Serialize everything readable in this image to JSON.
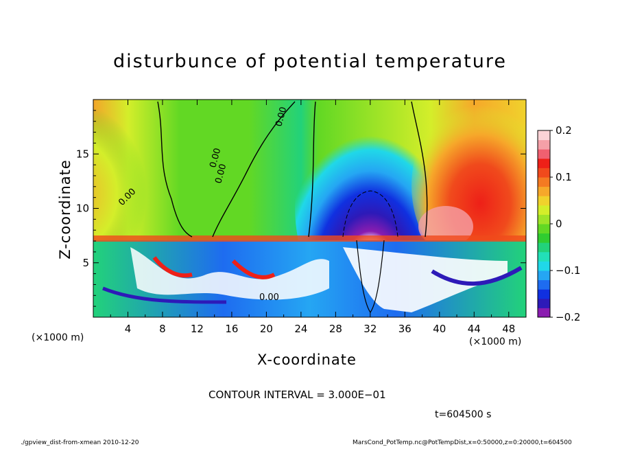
{
  "chart_data": {
    "type": "heatmap",
    "title": "disturbunce of potential temperature",
    "xlabel": "X-coordinate",
    "ylabel": "Z-coordinate",
    "x_unit_label": "(×1000 m)",
    "xlim": [
      0,
      50
    ],
    "ylim": [
      0,
      20
    ],
    "x_ticks": [
      4,
      8,
      12,
      16,
      20,
      24,
      28,
      32,
      36,
      40,
      44,
      48
    ],
    "y_ticks": [
      5,
      10,
      15
    ],
    "colorbar": {
      "range": [
        -0.2,
        0.2
      ],
      "ticks": [
        {
          "value": 0.2,
          "label": "0.2"
        },
        {
          "value": 0.1,
          "label": "0.1"
        },
        {
          "value": 0.0,
          "label": "0"
        },
        {
          "value": -0.1,
          "label": "−0.1"
        },
        {
          "value": -0.2,
          "label": "−0.2"
        }
      ],
      "colors": [
        "#8a1cb0",
        "#2d1ab8",
        "#1030e0",
        "#1e6cf0",
        "#25a6f3",
        "#20d8e8",
        "#22e0b8",
        "#22d27a",
        "#30cc30",
        "#62d824",
        "#9ee428",
        "#d4ee2a",
        "#f0d22c",
        "#f6a82a",
        "#f47a22",
        "#f04a1c",
        "#ee2018",
        "#f06070",
        "#f5a0a8",
        "#fbd2d6"
      ]
    },
    "contour_labels": [
      "0.00",
      "0.00",
      "0.00",
      "0.00",
      "0.00"
    ],
    "contour_interval_text": "CONTOUR INTERVAL = 3.000E−01",
    "time_text": "t=604500 s"
  },
  "footer": {
    "left": "./gpview_dist-from-xmean  2010-12-20",
    "right": "MarsCond_PotTemp.nc@PotTempDist,x=0:50000,z=0:20000,t=604500"
  }
}
